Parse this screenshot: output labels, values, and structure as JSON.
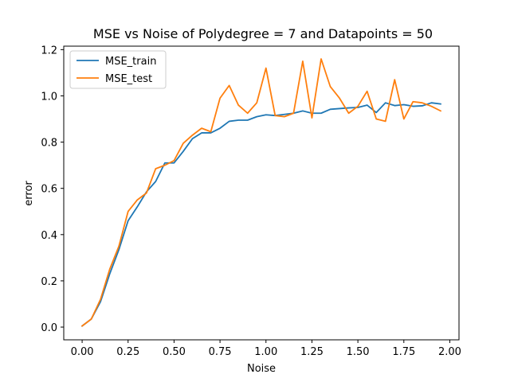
{
  "chart_data": {
    "type": "line",
    "title": "MSE vs Noise of Polydegree = 7 and Datapoints = 50",
    "xlabel": "Noise",
    "ylabel": "error",
    "xlim": [
      -0.1,
      2.05
    ],
    "ylim": [
      -0.055,
      1.215
    ],
    "xticks": [
      0.0,
      0.25,
      0.5,
      0.75,
      1.0,
      1.25,
      1.5,
      1.75,
      2.0
    ],
    "xtick_labels": [
      "0.00",
      "0.25",
      "0.50",
      "0.75",
      "1.00",
      "1.25",
      "1.50",
      "1.75",
      "2.00"
    ],
    "yticks": [
      0.0,
      0.2,
      0.4,
      0.6,
      0.8,
      1.0,
      1.2
    ],
    "ytick_labels": [
      "0.0",
      "0.2",
      "0.4",
      "0.6",
      "0.8",
      "1.0",
      "1.2"
    ],
    "grid": false,
    "legend_position": "top-left",
    "x": [
      0.0,
      0.05,
      0.1,
      0.15,
      0.2,
      0.25,
      0.3,
      0.35,
      0.4,
      0.45,
      0.5,
      0.55,
      0.6,
      0.65,
      0.7,
      0.75,
      0.8,
      0.85,
      0.9,
      0.95,
      1.0,
      1.05,
      1.1,
      1.15,
      1.2,
      1.25,
      1.3,
      1.35,
      1.4,
      1.45,
      1.5,
      1.55,
      1.6,
      1.65,
      1.7,
      1.75,
      1.8,
      1.85,
      1.9,
      1.95
    ],
    "series": [
      {
        "name": "MSE_train",
        "color": "#1f77b4",
        "values": [
          0.005,
          0.035,
          0.11,
          0.23,
          0.335,
          0.46,
          0.52,
          0.585,
          0.63,
          0.71,
          0.71,
          0.76,
          0.815,
          0.84,
          0.84,
          0.86,
          0.89,
          0.895,
          0.895,
          0.91,
          0.918,
          0.915,
          0.92,
          0.925,
          0.935,
          0.925,
          0.925,
          0.942,
          0.945,
          0.948,
          0.95,
          0.96,
          0.928,
          0.97,
          0.958,
          0.962,
          0.955,
          0.957,
          0.97,
          0.965
        ]
      },
      {
        "name": "MSE_test",
        "color": "#ff7f0e",
        "values": [
          0.005,
          0.035,
          0.12,
          0.25,
          0.35,
          0.5,
          0.55,
          0.58,
          0.685,
          0.7,
          0.72,
          0.795,
          0.83,
          0.86,
          0.845,
          0.99,
          1.045,
          0.96,
          0.925,
          0.97,
          1.12,
          0.915,
          0.91,
          0.925,
          1.15,
          0.905,
          1.16,
          1.04,
          0.99,
          0.925,
          0.955,
          1.02,
          0.9,
          0.89,
          1.07,
          0.9,
          0.975,
          0.97,
          0.955,
          0.935
        ]
      }
    ]
  }
}
